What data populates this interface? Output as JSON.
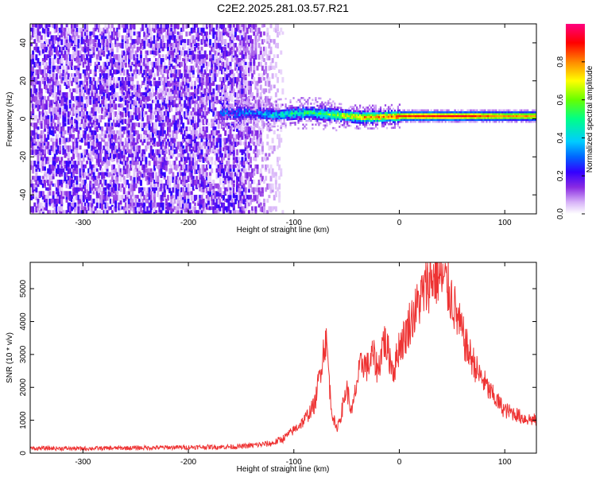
{
  "title": "C2E2.2025.281.03.57.R21",
  "chart_data": [
    {
      "type": "heatmap",
      "title": "C2E2.2025.281.03.57.R21",
      "xlabel": "Height of straight line (km)",
      "ylabel": "Frequency (Hz)",
      "xlim": [
        -350,
        130
      ],
      "ylim": [
        -50,
        50
      ],
      "x_ticks": [
        -300,
        -200,
        -100,
        0,
        100
      ],
      "y_ticks": [
        -40,
        -20,
        0,
        20,
        40
      ],
      "colorbar": {
        "label": "Normalized spectral amplitude",
        "range": [
          0,
          1
        ],
        "ticks": [
          0.0,
          0.2,
          0.4,
          0.6,
          0.8
        ],
        "colormap": [
          "#ffffff",
          "#d8b4f8",
          "#8a2be2",
          "#3300ff",
          "#0066ff",
          "#00ccff",
          "#00ff88",
          "#66ff00",
          "#ffff00",
          "#ff8800",
          "#ff0000",
          "#ff0080"
        ]
      },
      "noise_region_x": [
        -350,
        -120
      ],
      "signal_band": {
        "x": [
          -170,
          -140,
          -120,
          -100,
          -80,
          -60,
          -40,
          -20,
          0,
          20,
          40,
          60,
          80,
          100,
          130
        ],
        "center_hz": [
          3,
          3,
          2,
          3,
          3,
          2,
          1,
          1,
          1.5,
          1.5,
          1.5,
          1.5,
          1.5,
          1.5,
          1.5
        ],
        "amplitude": [
          0.25,
          0.3,
          0.4,
          0.45,
          0.5,
          0.6,
          0.75,
          0.8,
          0.85,
          0.9,
          0.9,
          0.9,
          0.85,
          0.8,
          0.8
        ]
      }
    },
    {
      "type": "line",
      "xlabel": "Height of straight line (km)",
      "ylabel": "SNR (10 * v/v)",
      "xlim": [
        -350,
        130
      ],
      "ylim": [
        0,
        5800
      ],
      "x_ticks": [
        -300,
        -200,
        -100,
        0,
        100
      ],
      "y_ticks": [
        0,
        1000,
        2000,
        3000,
        4000,
        5000
      ],
      "color": "#ee3333",
      "x": [
        -350,
        -300,
        -250,
        -200,
        -150,
        -120,
        -110,
        -100,
        -90,
        -80,
        -75,
        -70,
        -68,
        -65,
        -60,
        -55,
        -50,
        -45,
        -40,
        -35,
        -30,
        -25,
        -20,
        -15,
        -10,
        -5,
        0,
        5,
        10,
        15,
        20,
        25,
        30,
        35,
        40,
        45,
        50,
        55,
        60,
        65,
        70,
        75,
        80,
        85,
        90,
        95,
        100,
        105,
        110,
        115,
        120,
        130
      ],
      "y": [
        150,
        140,
        160,
        180,
        200,
        300,
        450,
        700,
        1000,
        1500,
        2500,
        3500,
        3000,
        1500,
        700,
        1200,
        2000,
        1200,
        2200,
        2800,
        2600,
        3000,
        2500,
        3500,
        3000,
        2500,
        3300,
        3500,
        4000,
        4300,
        4700,
        5000,
        5300,
        5400,
        5300,
        5100,
        4700,
        4100,
        3600,
        3100,
        2800,
        2400,
        2200,
        1900,
        1700,
        1500,
        1300,
        1250,
        1200,
        1100,
        1050,
        1000
      ]
    }
  ]
}
